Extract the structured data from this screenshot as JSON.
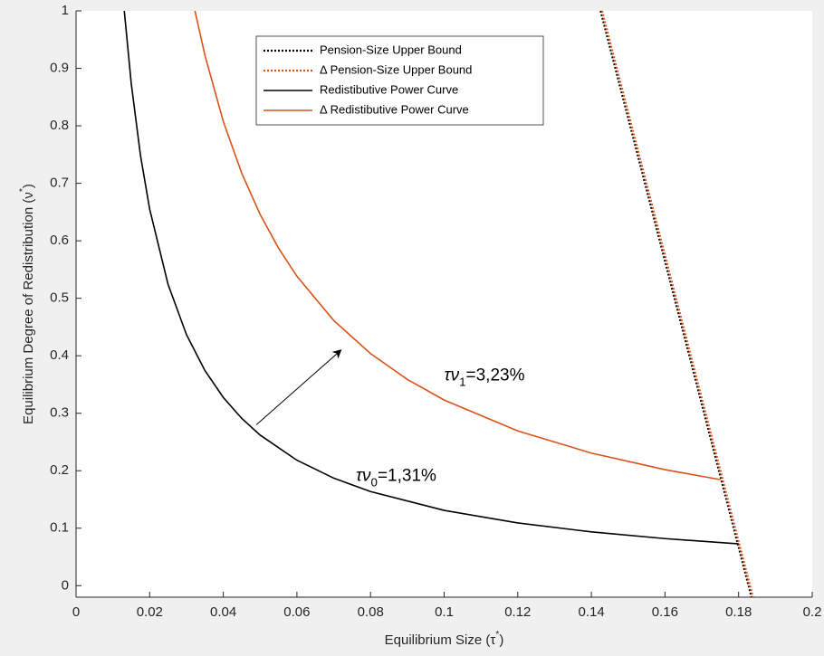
{
  "chart_data": {
    "type": "line",
    "xlabel": [
      "Equilibrium Size (τ",
      "*",
      ")"
    ],
    "ylabel": [
      "Equilibrium Degree of Redistribution (ν",
      "*",
      ")"
    ],
    "xlim": [
      0,
      0.2
    ],
    "ylim": [
      -0.02,
      1
    ],
    "xticks": [
      0,
      0.02,
      0.04,
      0.06,
      0.08,
      0.1,
      0.12,
      0.14,
      0.16,
      0.18,
      0.2
    ],
    "yticks": [
      0,
      0.1,
      0.2,
      0.3,
      0.4,
      0.5,
      0.6,
      0.7,
      0.8,
      0.9,
      1
    ],
    "legend": "top",
    "series": [
      {
        "name": "Pension-Size Upper Bound",
        "color": "#000000",
        "dash": "dotted",
        "x": [
          0.1425,
          0.1835
        ],
        "values": [
          1,
          -0.02
        ]
      },
      {
        "name": "Δ Pension-Size Upper Bound",
        "color": "#d95319",
        "dash": "dotted",
        "x": [
          0.1429,
          0.1839
        ],
        "values": [
          1,
          -0.02
        ]
      },
      {
        "name": "Redistibutive Power Curve",
        "color": "#000000",
        "dash": "solid",
        "x": [
          0.0131,
          0.015,
          0.0175,
          0.02,
          0.025,
          0.03,
          0.035,
          0.04,
          0.045,
          0.05,
          0.06,
          0.07,
          0.08,
          0.1,
          0.12,
          0.14,
          0.16,
          0.18
        ],
        "values": [
          1,
          0.8733,
          0.7486,
          0.655,
          0.524,
          0.4367,
          0.3743,
          0.3275,
          0.2911,
          0.262,
          0.2183,
          0.1871,
          0.1638,
          0.131,
          0.1092,
          0.0936,
          0.0819,
          0.0728
        ]
      },
      {
        "name": "Δ Redistibutive Power Curve",
        "color": "#d95319",
        "dash": "solid",
        "x": [
          0.0323,
          0.035,
          0.04,
          0.045,
          0.05,
          0.055,
          0.06,
          0.07,
          0.08,
          0.09,
          0.1,
          0.12,
          0.14,
          0.16,
          0.175
        ],
        "values": [
          1,
          0.9229,
          0.8075,
          0.7178,
          0.646,
          0.5873,
          0.5383,
          0.4614,
          0.4038,
          0.3589,
          0.323,
          0.2692,
          0.2307,
          0.2019,
          0.1846
        ]
      }
    ],
    "annotations": [
      {
        "parts": [
          "τν",
          "1",
          "=3,23%"
        ],
        "x": 0.1,
        "y": 0.365
      },
      {
        "parts": [
          "τν",
          "0",
          "=1,31%"
        ],
        "x": 0.076,
        "y": 0.19
      }
    ],
    "arrow": {
      "x": [
        0.049,
        0.072
      ],
      "y": [
        0.28,
        0.41
      ]
    }
  }
}
